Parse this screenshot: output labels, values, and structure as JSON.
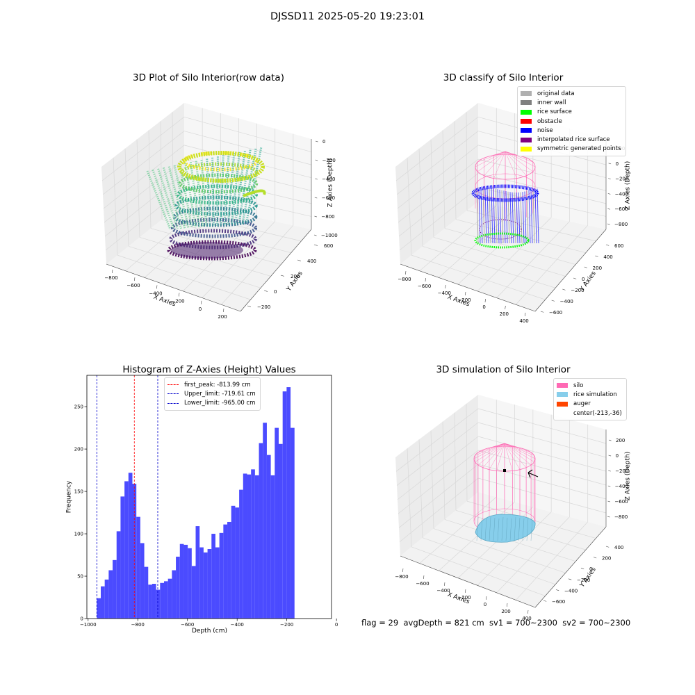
{
  "suptitle": "DJSSD11 2025-05-20 19:23:01",
  "footer": "flag = 29  avgDepth = 821 cm  sv1 = 700~2300  sv2 = 700~2300",
  "colors": {
    "bar": "#4b4bff",
    "first_peak": "#ff0000",
    "limits": "#0000cc",
    "silo": "#ff69b4",
    "rice": "#87ceeb"
  },
  "icons": [
    "auger-arrow-icon"
  ],
  "chart_data": [
    {
      "type": "scatter3d",
      "title": "3D Plot of Silo Interior(row data)",
      "xlabel": "X Axies",
      "ylabel": "Y Axies",
      "zlabel": "Z Axies (Depth)",
      "x_ticks": [
        "−800",
        "−600",
        "−400",
        "−200",
        "0",
        "200"
      ],
      "y_ticks": [
        "−200",
        "0",
        "200",
        "400",
        "600"
      ],
      "z_ticks": [
        "0",
        "−200",
        "−400",
        "−600",
        "−800",
        "−1000"
      ],
      "colormap": "viridis"
    },
    {
      "type": "scatter3d",
      "title": "3D classify of Silo Interior",
      "xlabel": "X Axies",
      "ylabel": "Y Axies",
      "zlabel": "Z Axies (Depth)",
      "x_ticks": [
        "−800",
        "−600",
        "−400",
        "−200",
        "0",
        "200",
        "400"
      ],
      "y_ticks": [
        "−600",
        "−400",
        "−200",
        "0",
        "200",
        "400",
        "600"
      ],
      "z_ticks": [
        "200",
        "0",
        "−200",
        "−400",
        "−600",
        "−800"
      ],
      "legend": [
        {
          "label": "original data",
          "color": "#b0b0b0"
        },
        {
          "label": "inner wall",
          "color": "#808080"
        },
        {
          "label": "rice surface",
          "color": "#00ff00"
        },
        {
          "label": "obstacle",
          "color": "#ff0000"
        },
        {
          "label": "noise",
          "color": "#0000ff"
        },
        {
          "label": "interpolated rice surface",
          "color": "#800080"
        },
        {
          "label": "symmetric generated points",
          "color": "#ffff00"
        }
      ],
      "legend_position": "top-right"
    },
    {
      "type": "bar",
      "title": "Histogram of Z-Axies (Height) Values",
      "xlabel": "Depth (cm)",
      "ylabel": "Frequency",
      "xlim": [
        -1005,
        -20
      ],
      "ylim": [
        0,
        287
      ],
      "bin_start": -965,
      "bin_width": 15.92,
      "values": [
        24,
        38,
        46,
        57,
        69,
        103,
        144,
        162,
        172,
        159,
        120,
        89,
        61,
        40,
        41,
        34,
        42,
        44,
        47,
        57,
        73,
        88,
        87,
        83,
        62,
        109,
        84,
        78,
        82,
        100,
        84,
        101,
        111,
        114,
        133,
        131,
        152,
        171,
        170,
        176,
        169,
        207,
        231,
        193,
        169,
        225,
        206,
        268,
        273,
        225
      ],
      "x_ticks": [
        {
          "v": -1000,
          "label": "−1000"
        },
        {
          "v": -800,
          "label": "−800"
        },
        {
          "v": -600,
          "label": "−600"
        },
        {
          "v": -400,
          "label": "−400"
        },
        {
          "v": -200,
          "label": "−200"
        },
        {
          "v": 0,
          "label": "0"
        }
      ],
      "y_ticks": [
        {
          "v": 0,
          "label": "0"
        },
        {
          "v": 50,
          "label": "50"
        },
        {
          "v": 100,
          "label": "100"
        },
        {
          "v": 150,
          "label": "150"
        },
        {
          "v": 200,
          "label": "200"
        },
        {
          "v": 250,
          "label": "250"
        }
      ],
      "vlines": [
        {
          "x": -813.99,
          "label": "first_peak: -813.99 cm",
          "color": "#ff0000"
        },
        {
          "x": -719.61,
          "label": "Upper_limit: -719.61 cm",
          "color": "#0000cc"
        },
        {
          "x": -965.0,
          "label": "Lower_limit: -965.00 cm",
          "color": "#0000cc"
        }
      ],
      "legend_position": "top-center"
    },
    {
      "type": "surface3d",
      "title": "3D simulation of Silo Interior",
      "xlabel": "X Axies",
      "ylabel": "Y Axies",
      "zlabel": "Z Axies (Depth)",
      "x_ticks": [
        "−800",
        "−600",
        "−400",
        "−200",
        "0",
        "200",
        "400"
      ],
      "y_ticks": [
        "−600",
        "−400",
        "−200",
        "0",
        "200",
        "400"
      ],
      "z_ticks": [
        "200",
        "0",
        "−200",
        "−400",
        "−600",
        "−800"
      ],
      "legend": [
        {
          "label": "silo",
          "color": "#ff69b4"
        },
        {
          "label": "rice simulation",
          "color": "#87ceeb"
        },
        {
          "label": "auger",
          "color": "#ff4500"
        },
        {
          "label": "center(-213,-36)",
          "color": ""
        }
      ],
      "legend_position": "top-right"
    }
  ]
}
